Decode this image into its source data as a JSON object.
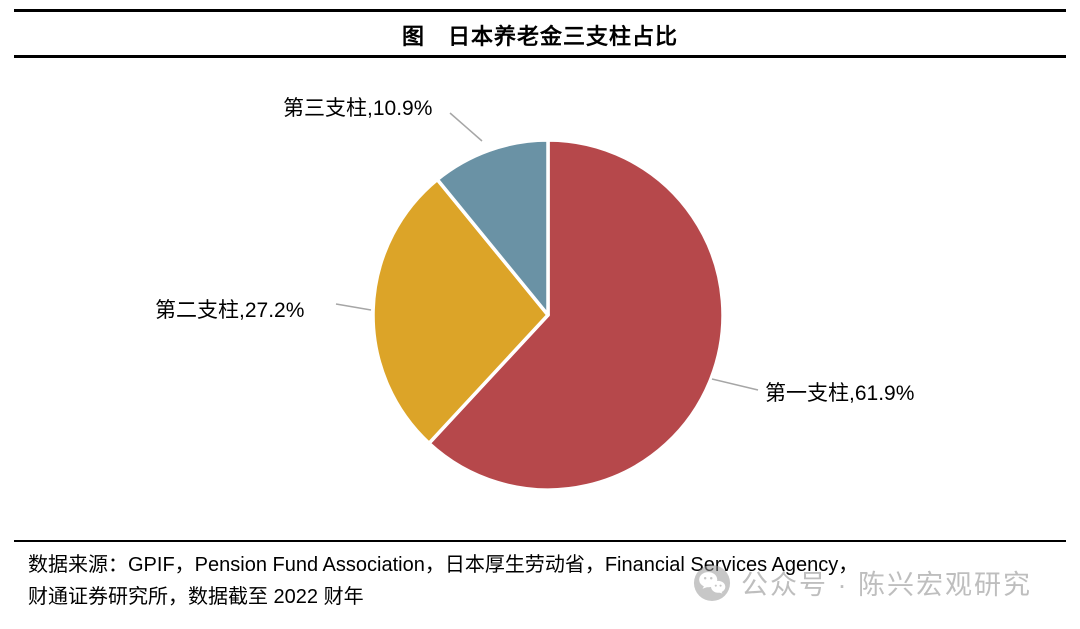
{
  "title": "图　日本养老金三支柱占比",
  "chart_data": {
    "type": "pie",
    "title": "日本养老金三支柱占比",
    "direction": "clockwise",
    "start_angle_deg": 0,
    "legend_position": "none",
    "slices": [
      {
        "name": "第一支柱",
        "value": 61.9,
        "label": "第一支柱,61.9%",
        "color": "#B6484B"
      },
      {
        "name": "第二支柱",
        "value": 27.2,
        "label": "第二支柱,27.2%",
        "color": "#DCA428"
      },
      {
        "name": "第三支柱",
        "value": 10.9,
        "label": "第三支柱,10.9%",
        "color": "#6A92A5"
      }
    ]
  },
  "source": {
    "line1": "数据来源：GPIF，Pension Fund Association，日本厚生劳动省，Financial Services Agency，",
    "line2": "财通证券研究所，数据截至 2022 财年"
  },
  "watermark": {
    "text": "公众号 · 陈兴宏观研究",
    "icon": "wechat-icon"
  }
}
